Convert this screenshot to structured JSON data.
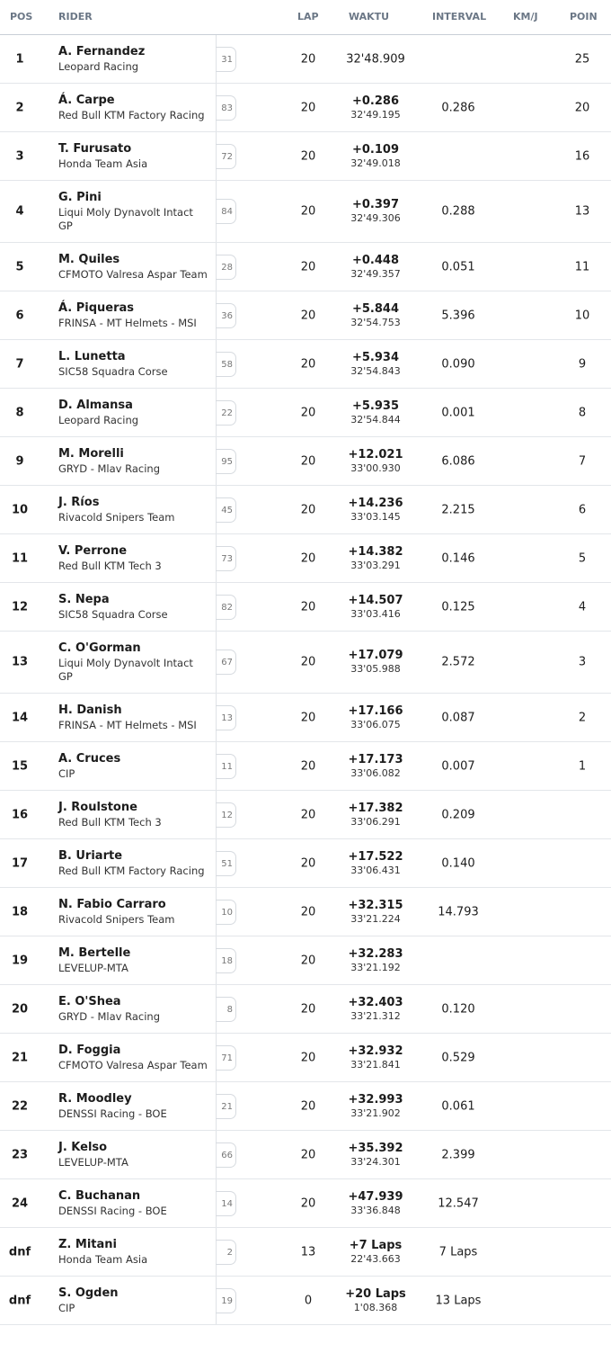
{
  "header": {
    "pos": "POS",
    "rider": "RIDER",
    "lap": "LAP",
    "time": "WAKTU",
    "interval": "INTERVAL",
    "speed": "KM/J",
    "points": "POIN"
  },
  "rows": [
    {
      "pos": "1",
      "name": "A. Fernandez",
      "team": "Leopard Racing",
      "number": "31",
      "lap": 20,
      "time": "32'48.909",
      "points": 25
    },
    {
      "pos": "2",
      "name": "Á. Carpe",
      "team": "Red Bull KTM Factory Racing",
      "number": "83",
      "lap": 20,
      "gap": "+0.286",
      "time": "32'49.195",
      "interval": "0.286",
      "points": 20
    },
    {
      "pos": "3",
      "name": "T. Furusato",
      "team": "Honda Team Asia",
      "number": "72",
      "lap": 20,
      "gap": "+0.109",
      "time": "32'49.018",
      "points": 16
    },
    {
      "pos": "4",
      "name": "G. Pini",
      "team": "Liqui Moly Dynavolt Intact GP",
      "number": "84",
      "lap": 20,
      "gap": "+0.397",
      "time": "32'49.306",
      "interval": "0.288",
      "points": 13
    },
    {
      "pos": "5",
      "name": "M. Quiles",
      "team": "CFMOTO Valresa Aspar Team",
      "number": "28",
      "lap": 20,
      "gap": "+0.448",
      "time": "32'49.357",
      "interval": "0.051",
      "points": 11
    },
    {
      "pos": "6",
      "name": "Á. Piqueras",
      "team": "FRINSA - MT Helmets - MSI",
      "number": "36",
      "lap": 20,
      "gap": "+5.844",
      "time": "32'54.753",
      "interval": "5.396",
      "points": 10
    },
    {
      "pos": "7",
      "name": "L. Lunetta",
      "team": "SIC58 Squadra Corse",
      "number": "58",
      "lap": 20,
      "gap": "+5.934",
      "time": "32'54.843",
      "interval": "0.090",
      "points": 9
    },
    {
      "pos": "8",
      "name": "D. Almansa",
      "team": "Leopard Racing",
      "number": "22",
      "lap": 20,
      "gap": "+5.935",
      "time": "32'54.844",
      "interval": "0.001",
      "points": 8
    },
    {
      "pos": "9",
      "name": "M. Morelli",
      "team": "GRYD - Mlav Racing",
      "number": "95",
      "lap": 20,
      "gap": "+12.021",
      "time": "33'00.930",
      "interval": "6.086",
      "points": 7
    },
    {
      "pos": "10",
      "name": "J. Ríos",
      "team": "Rivacold Snipers Team",
      "number": "45",
      "lap": 20,
      "gap": "+14.236",
      "time": "33'03.145",
      "interval": "2.215",
      "points": 6
    },
    {
      "pos": "11",
      "name": "V. Perrone",
      "team": "Red Bull KTM Tech 3",
      "number": "73",
      "lap": 20,
      "gap": "+14.382",
      "time": "33'03.291",
      "interval": "0.146",
      "points": 5
    },
    {
      "pos": "12",
      "name": "S. Nepa",
      "team": "SIC58 Squadra Corse",
      "number": "82",
      "lap": 20,
      "gap": "+14.507",
      "time": "33'03.416",
      "interval": "0.125",
      "points": 4
    },
    {
      "pos": "13",
      "name": "C. O'Gorman",
      "team": "Liqui Moly Dynavolt Intact GP",
      "number": "67",
      "lap": 20,
      "gap": "+17.079",
      "time": "33'05.988",
      "interval": "2.572",
      "points": 3
    },
    {
      "pos": "14",
      "name": "H. Danish",
      "team": "FRINSA - MT Helmets - MSI",
      "number": "13",
      "lap": 20,
      "gap": "+17.166",
      "time": "33'06.075",
      "interval": "0.087",
      "points": 2
    },
    {
      "pos": "15",
      "name": "A. Cruces",
      "team": "CIP",
      "number": "11",
      "lap": 20,
      "gap": "+17.173",
      "time": "33'06.082",
      "interval": "0.007",
      "points": 1
    },
    {
      "pos": "16",
      "name": "J. Roulstone",
      "team": "Red Bull KTM Tech 3",
      "number": "12",
      "lap": 20,
      "gap": "+17.382",
      "time": "33'06.291",
      "interval": "0.209"
    },
    {
      "pos": "17",
      "name": "B. Uriarte",
      "team": "Red Bull KTM Factory Racing",
      "number": "51",
      "lap": 20,
      "gap": "+17.522",
      "time": "33'06.431",
      "interval": "0.140"
    },
    {
      "pos": "18",
      "name": "N. Fabio Carraro",
      "team": "Rivacold Snipers Team",
      "number": "10",
      "lap": 20,
      "gap": "+32.315",
      "time": "33'21.224",
      "interval": "14.793"
    },
    {
      "pos": "19",
      "name": "M. Bertelle",
      "team": "LEVELUP-MTA",
      "number": "18",
      "lap": 20,
      "gap": "+32.283",
      "time": "33'21.192"
    },
    {
      "pos": "20",
      "name": "E. O'Shea",
      "team": "GRYD - Mlav Racing",
      "number": "8",
      "lap": 20,
      "gap": "+32.403",
      "time": "33'21.312",
      "interval": "0.120"
    },
    {
      "pos": "21",
      "name": "D. Foggia",
      "team": "CFMOTO Valresa Aspar Team",
      "number": "71",
      "lap": 20,
      "gap": "+32.932",
      "time": "33'21.841",
      "interval": "0.529"
    },
    {
      "pos": "22",
      "name": "R. Moodley",
      "team": "DENSSI Racing - BOE",
      "number": "21",
      "lap": 20,
      "gap": "+32.993",
      "time": "33'21.902",
      "interval": "0.061"
    },
    {
      "pos": "23",
      "name": "J. Kelso",
      "team": "LEVELUP-MTA",
      "number": "66",
      "lap": 20,
      "gap": "+35.392",
      "time": "33'24.301",
      "interval": "2.399"
    },
    {
      "pos": "24",
      "name": "C. Buchanan",
      "team": "DENSSI Racing - BOE",
      "number": "14",
      "lap": 20,
      "gap": "+47.939",
      "time": "33'36.848",
      "interval": "12.547"
    },
    {
      "pos": "dnf",
      "name": "Z. Mitani",
      "team": "Honda Team Asia",
      "number": "2",
      "lap": 13,
      "gap": "+7 Laps",
      "time": "22'43.663",
      "interval": "7 Laps"
    },
    {
      "pos": "dnf",
      "name": "S. Ogden",
      "team": "CIP",
      "number": "19",
      "lap": 0,
      "gap": "+20 Laps",
      "time": "1'08.368",
      "interval": "13 Laps"
    }
  ]
}
